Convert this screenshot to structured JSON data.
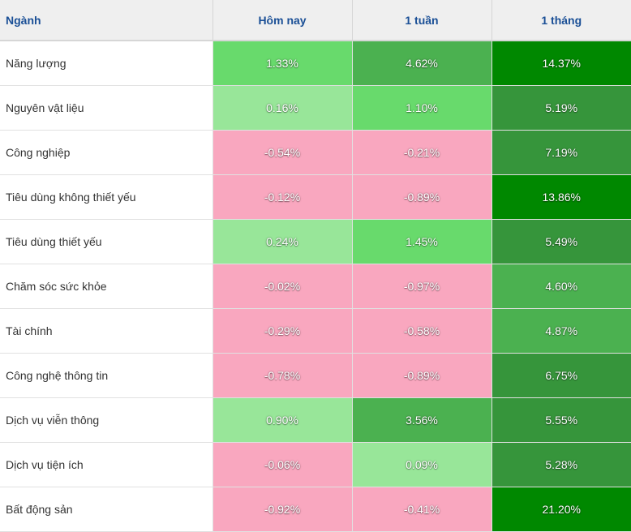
{
  "header": {
    "sector": "Ngành",
    "today": "Hôm nay",
    "week": "1 tuần",
    "month": "1 tháng"
  },
  "colors": {
    "negative": "#f9a7bf",
    "light_green": "#98e699",
    "green": "#68da6c",
    "mid_green": "#4bb150",
    "dark_green": "#36953b",
    "deep_green": "#008800"
  },
  "rows": [
    {
      "name": "Năng lượng",
      "today": "1.33%",
      "week": "4.62%",
      "month": "14.37%",
      "today_color": "#68da6c",
      "week_color": "#4bb150",
      "month_color": "#008800"
    },
    {
      "name": "Nguyên vật liệu",
      "today": "0.16%",
      "week": "1.10%",
      "month": "5.19%",
      "today_color": "#98e699",
      "week_color": "#68da6c",
      "month_color": "#36953b"
    },
    {
      "name": "Công nghiệp",
      "today": "-0.54%",
      "week": "-0.21%",
      "month": "7.19%",
      "today_color": "#f9a7bf",
      "week_color": "#f9a7bf",
      "month_color": "#36953b"
    },
    {
      "name": "Tiêu dùng không thiết yếu",
      "today": "-0.12%",
      "week": "-0.89%",
      "month": "13.86%",
      "today_color": "#f9a7bf",
      "week_color": "#f9a7bf",
      "month_color": "#008800"
    },
    {
      "name": "Tiêu dùng thiết yếu",
      "today": "0.24%",
      "week": "1.45%",
      "month": "5.49%",
      "today_color": "#98e699",
      "week_color": "#68da6c",
      "month_color": "#36953b"
    },
    {
      "name": "Chăm sóc sức khỏe",
      "today": "-0.02%",
      "week": "-0.97%",
      "month": "4.60%",
      "today_color": "#f9a7bf",
      "week_color": "#f9a7bf",
      "month_color": "#4bb150"
    },
    {
      "name": "Tài chính",
      "today": "-0.29%",
      "week": "-0.58%",
      "month": "4.87%",
      "today_color": "#f9a7bf",
      "week_color": "#f9a7bf",
      "month_color": "#4bb150"
    },
    {
      "name": "Công nghệ thông tin",
      "today": "-0.78%",
      "week": "-0.89%",
      "month": "6.75%",
      "today_color": "#f9a7bf",
      "week_color": "#f9a7bf",
      "month_color": "#36953b"
    },
    {
      "name": "Dịch vụ viễn thông",
      "today": "0.90%",
      "week": "3.56%",
      "month": "5.55%",
      "today_color": "#98e699",
      "week_color": "#4bb150",
      "month_color": "#36953b"
    },
    {
      "name": "Dịch vụ tiện ích",
      "today": "-0.06%",
      "week": "0.09%",
      "month": "5.28%",
      "today_color": "#f9a7bf",
      "week_color": "#98e699",
      "month_color": "#36953b"
    },
    {
      "name": "Bất động sản",
      "today": "-0.92%",
      "week": "-0.41%",
      "month": "21.20%",
      "today_color": "#f9a7bf",
      "week_color": "#f9a7bf",
      "month_color": "#008800"
    }
  ]
}
